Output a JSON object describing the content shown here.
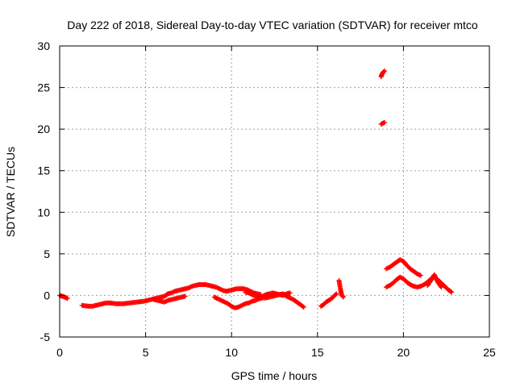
{
  "chart_data": {
    "type": "scatter",
    "title": "Day 222 of 2018, Sidereal Day-to-day VTEC variation (SDTVAR) for receiver mtco",
    "xlabel": "GPS time / hours",
    "ylabel": "SDTVAR / TECUs",
    "xlim": [
      0,
      25
    ],
    "ylim": [
      -5,
      30
    ],
    "xticks": [
      0,
      5,
      10,
      15,
      20,
      25
    ],
    "yticks": [
      -5,
      0,
      5,
      10,
      15,
      20,
      25,
      30
    ],
    "grid": true,
    "marker": "+",
    "color": "#ff0000",
    "series": [
      {
        "name": "SDTVAR",
        "segments": [
          {
            "x": [
              0.0,
              0.15,
              0.3,
              0.45
            ],
            "y": [
              0.0,
              -0.1,
              -0.2,
              -0.35
            ]
          },
          {
            "x": [
              1.3,
              1.5,
              1.7,
              1.9,
              2.1,
              2.3,
              2.5,
              2.7,
              2.9,
              3.1,
              3.3,
              3.5,
              3.7,
              3.9,
              4.1,
              4.3,
              4.5,
              4.7,
              4.9,
              5.1,
              5.3,
              5.5,
              5.7,
              5.9,
              6.1,
              6.3,
              6.5,
              6.7,
              6.9,
              7.1,
              7.3,
              7.5,
              7.7,
              7.9,
              8.1,
              8.3,
              8.5,
              8.7,
              8.9,
              9.1,
              9.3,
              9.5,
              9.7,
              9.9,
              10.1,
              10.3,
              10.5,
              10.7,
              10.9,
              11.1,
              11.3,
              11.5,
              11.7
            ],
            "y": [
              -1.2,
              -1.25,
              -1.3,
              -1.3,
              -1.2,
              -1.1,
              -1.0,
              -0.9,
              -0.9,
              -0.95,
              -1.0,
              -1.0,
              -1.0,
              -0.95,
              -0.9,
              -0.85,
              -0.8,
              -0.75,
              -0.7,
              -0.6,
              -0.5,
              -0.4,
              -0.3,
              -0.2,
              -0.1,
              0.2,
              0.3,
              0.5,
              0.6,
              0.7,
              0.8,
              0.9,
              1.1,
              1.2,
              1.3,
              1.3,
              1.3,
              1.2,
              1.1,
              1.0,
              0.8,
              0.6,
              0.5,
              0.6,
              0.7,
              0.8,
              0.8,
              0.8,
              0.7,
              0.5,
              0.3,
              0.2,
              0.1
            ]
          },
          {
            "x": [
              5.5,
              5.7,
              5.9,
              6.1,
              6.3,
              6.5,
              6.7,
              6.9,
              7.1,
              7.3
            ],
            "y": [
              -0.5,
              -0.6,
              -0.7,
              -0.8,
              -0.6,
              -0.5,
              -0.4,
              -0.3,
              -0.2,
              -0.1
            ]
          },
          {
            "x": [
              9.0,
              9.2,
              9.4,
              9.6,
              9.8,
              10.0,
              10.2,
              10.4,
              10.6,
              10.8,
              11.0,
              11.2,
              11.4,
              11.6,
              11.8,
              12.0,
              12.2,
              12.4,
              12.6,
              12.8,
              13.0,
              13.2,
              13.4,
              13.6,
              13.8,
              14.0,
              14.2
            ],
            "y": [
              -0.2,
              -0.4,
              -0.6,
              -0.8,
              -1.0,
              -1.3,
              -1.5,
              -1.4,
              -1.2,
              -1.0,
              -0.9,
              -0.7,
              -0.6,
              -0.4,
              -0.3,
              -0.3,
              -0.2,
              -0.1,
              0.0,
              0.1,
              0.2,
              -0.1,
              -0.3,
              -0.5,
              -0.8,
              -1.1,
              -1.4
            ]
          },
          {
            "x": [
              10.8,
              11.0,
              11.2,
              11.4,
              11.6,
              11.8,
              12.0,
              12.2,
              12.4,
              12.6,
              12.8,
              13.0,
              13.2,
              13.4
            ],
            "y": [
              0.4,
              0.3,
              0.1,
              -0.1,
              -0.2,
              -0.1,
              0.1,
              0.2,
              0.3,
              0.2,
              0.1,
              0.0,
              0.2,
              0.3
            ]
          },
          {
            "x": [
              15.2,
              15.35,
              15.5,
              15.65,
              15.8,
              15.95,
              16.1
            ],
            "y": [
              -1.3,
              -1.1,
              -0.8,
              -0.6,
              -0.4,
              -0.1,
              0.2
            ]
          },
          {
            "x": [
              16.25,
              16.3,
              16.35,
              16.4,
              16.5
            ],
            "y": [
              1.8,
              1.2,
              0.6,
              0.1,
              -0.2
            ]
          },
          {
            "x": [
              18.7,
              18.75,
              18.8,
              18.85,
              18.9
            ],
            "y": [
              26.3,
              26.6,
              26.8,
              26.9,
              27.0
            ]
          },
          {
            "x": [
              18.7,
              18.8,
              18.9
            ],
            "y": [
              20.6,
              20.7,
              20.8
            ]
          },
          {
            "x": [
              19.0,
              19.2,
              19.4,
              19.6,
              19.8,
              20.0,
              20.2,
              20.4,
              20.6,
              20.8,
              21.0
            ],
            "y": [
              3.2,
              3.4,
              3.7,
              4.0,
              4.3,
              4.1,
              3.6,
              3.2,
              2.9,
              2.6,
              2.4
            ]
          },
          {
            "x": [
              19.0,
              19.2,
              19.4,
              19.6,
              19.8,
              20.0,
              20.2,
              20.4,
              20.6,
              20.8,
              21.0,
              21.2,
              21.4,
              21.6,
              21.8,
              22.0,
              22.2,
              22.4,
              22.6,
              22.8
            ],
            "y": [
              1.0,
              1.2,
              1.5,
              1.9,
              2.2,
              2.0,
              1.6,
              1.3,
              1.1,
              1.0,
              1.1,
              1.3,
              1.6,
              2.0,
              2.2,
              1.9,
              1.5,
              1.1,
              0.7,
              0.4
            ]
          },
          {
            "x": [
              21.4,
              21.6,
              21.8,
              22.0,
              22.2
            ],
            "y": [
              1.2,
              1.8,
              2.5,
              1.6,
              1.0
            ]
          }
        ]
      }
    ]
  }
}
